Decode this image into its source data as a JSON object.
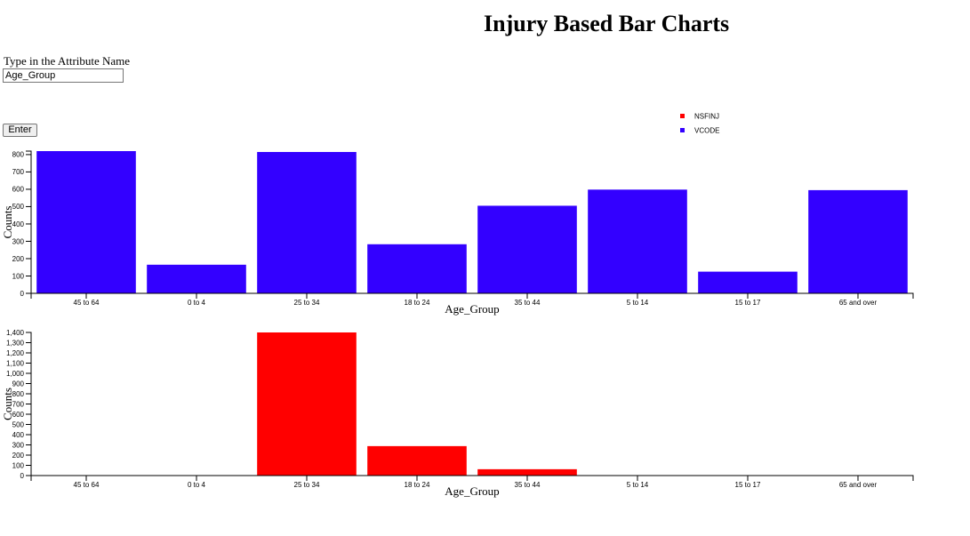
{
  "page": {
    "title": "Injury Based Bar Charts"
  },
  "form": {
    "label": "Type in the Attribute Name",
    "input_value": "Age_Group",
    "enter_label": "Enter"
  },
  "legend": [
    {
      "name": "NSFINJ",
      "color": "#ff0000"
    },
    {
      "name": "VCODE",
      "color": "#3300ff"
    }
  ],
  "chart_data": [
    {
      "type": "bar",
      "series_name": "VCODE",
      "color": "#3300ff",
      "categories": [
        "45 to 64",
        "0 to 4",
        "25 to 34",
        "18 to 24",
        "35 to 44",
        "5 to 14",
        "15 to 17",
        "65 and over"
      ],
      "values": [
        820,
        165,
        815,
        283,
        505,
        598,
        125,
        595
      ],
      "xlabel": "Age_Group",
      "ylabel": "Counts",
      "ylim": [
        0,
        820
      ],
      "yticks": [
        0,
        100,
        200,
        300,
        400,
        500,
        600,
        700,
        800
      ],
      "ytick_labels": [
        "0",
        "100",
        "200",
        "300",
        "400",
        "500",
        "600",
        "700",
        "800"
      ]
    },
    {
      "type": "bar",
      "series_name": "NSFINJ",
      "color": "#ff0000",
      "categories": [
        "45 to 64",
        "0 to 4",
        "25 to 34",
        "18 to 24",
        "35 to 44",
        "5 to 14",
        "15 to 17",
        "65 and over"
      ],
      "values": [
        0,
        0,
        1400,
        288,
        62,
        0,
        0,
        0
      ],
      "xlabel": "Age_Group",
      "ylabel": "Counts",
      "ylim": [
        0,
        1400
      ],
      "yticks": [
        0,
        100,
        200,
        300,
        400,
        500,
        600,
        700,
        800,
        900,
        1000,
        1100,
        1200,
        1300,
        1400
      ],
      "ytick_labels": [
        "0",
        "100",
        "200",
        "300",
        "400",
        "500",
        "600",
        "700",
        "800",
        "900",
        "1,000",
        "1,100",
        "1,200",
        "1,300",
        "1,400"
      ]
    }
  ]
}
